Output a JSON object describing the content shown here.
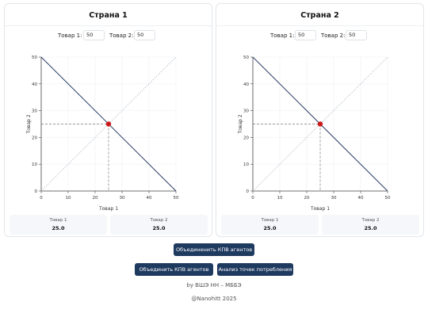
{
  "countries": [
    {
      "title": "Страна 1",
      "inputs": [
        {
          "label": "Товар 1:",
          "value": "50"
        },
        {
          "label": "Товар 2:",
          "value": "50"
        }
      ],
      "results": [
        {
          "label": "Товар 1",
          "value": "25.0"
        },
        {
          "label": "Товар 2",
          "value": "25.0"
        }
      ]
    },
    {
      "title": "Страна 2",
      "inputs": [
        {
          "label": "Товар 1:",
          "value": "50"
        },
        {
          "label": "Товар 2:",
          "value": "50"
        }
      ],
      "results": [
        {
          "label": "Товар 1",
          "value": "25.0"
        },
        {
          "label": "Товар 2",
          "value": "25.0"
        }
      ]
    }
  ],
  "chart_data": [
    {
      "type": "line",
      "xlabel": "Товар 1",
      "ylabel": "Товар 2",
      "xlim": [
        0,
        50
      ],
      "ylim": [
        0,
        50
      ],
      "x_ticks": [
        "0",
        "10",
        "20",
        "30",
        "40",
        "50"
      ],
      "y_ticks": [
        "0",
        "10",
        "20",
        "30",
        "40",
        "50"
      ],
      "grid": true,
      "series": [
        {
          "style": "solid",
          "color": "#2a3f66",
          "x": [
            0,
            50
          ],
          "y": [
            50,
            0
          ]
        },
        {
          "style": "dotted",
          "color": "#9aa3ad",
          "x": [
            0,
            50
          ],
          "y": [
            0,
            50
          ]
        }
      ],
      "point": {
        "x": 25,
        "y": 25,
        "color": "#cc1a1a"
      }
    },
    {
      "type": "line",
      "xlabel": "Товар 1",
      "ylabel": "Товар 2",
      "xlim": [
        0,
        50
      ],
      "ylim": [
        0,
        50
      ],
      "x_ticks": [
        "0",
        "10",
        "20",
        "30",
        "40",
        "50"
      ],
      "y_ticks": [
        "0",
        "10",
        "20",
        "30",
        "40",
        "50"
      ],
      "grid": true,
      "series": [
        {
          "style": "solid",
          "color": "#2a3f66",
          "x": [
            0,
            50
          ],
          "y": [
            50,
            0
          ]
        },
        {
          "style": "dotted",
          "color": "#9aa3ad",
          "x": [
            0,
            50
          ],
          "y": [
            0,
            50
          ]
        }
      ],
      "point": {
        "x": 25,
        "y": 25,
        "color": "#cc1a1a"
      }
    }
  ],
  "buttons": {
    "combine_top": "Объединенить КПВ агентов",
    "combine": "Объединить КПВ агентов",
    "analysis": "Анализ точек потребления"
  },
  "footer": {
    "line1": "by ВШЭ НН – МББЭ",
    "line2": "@Nanohitt 2025"
  }
}
